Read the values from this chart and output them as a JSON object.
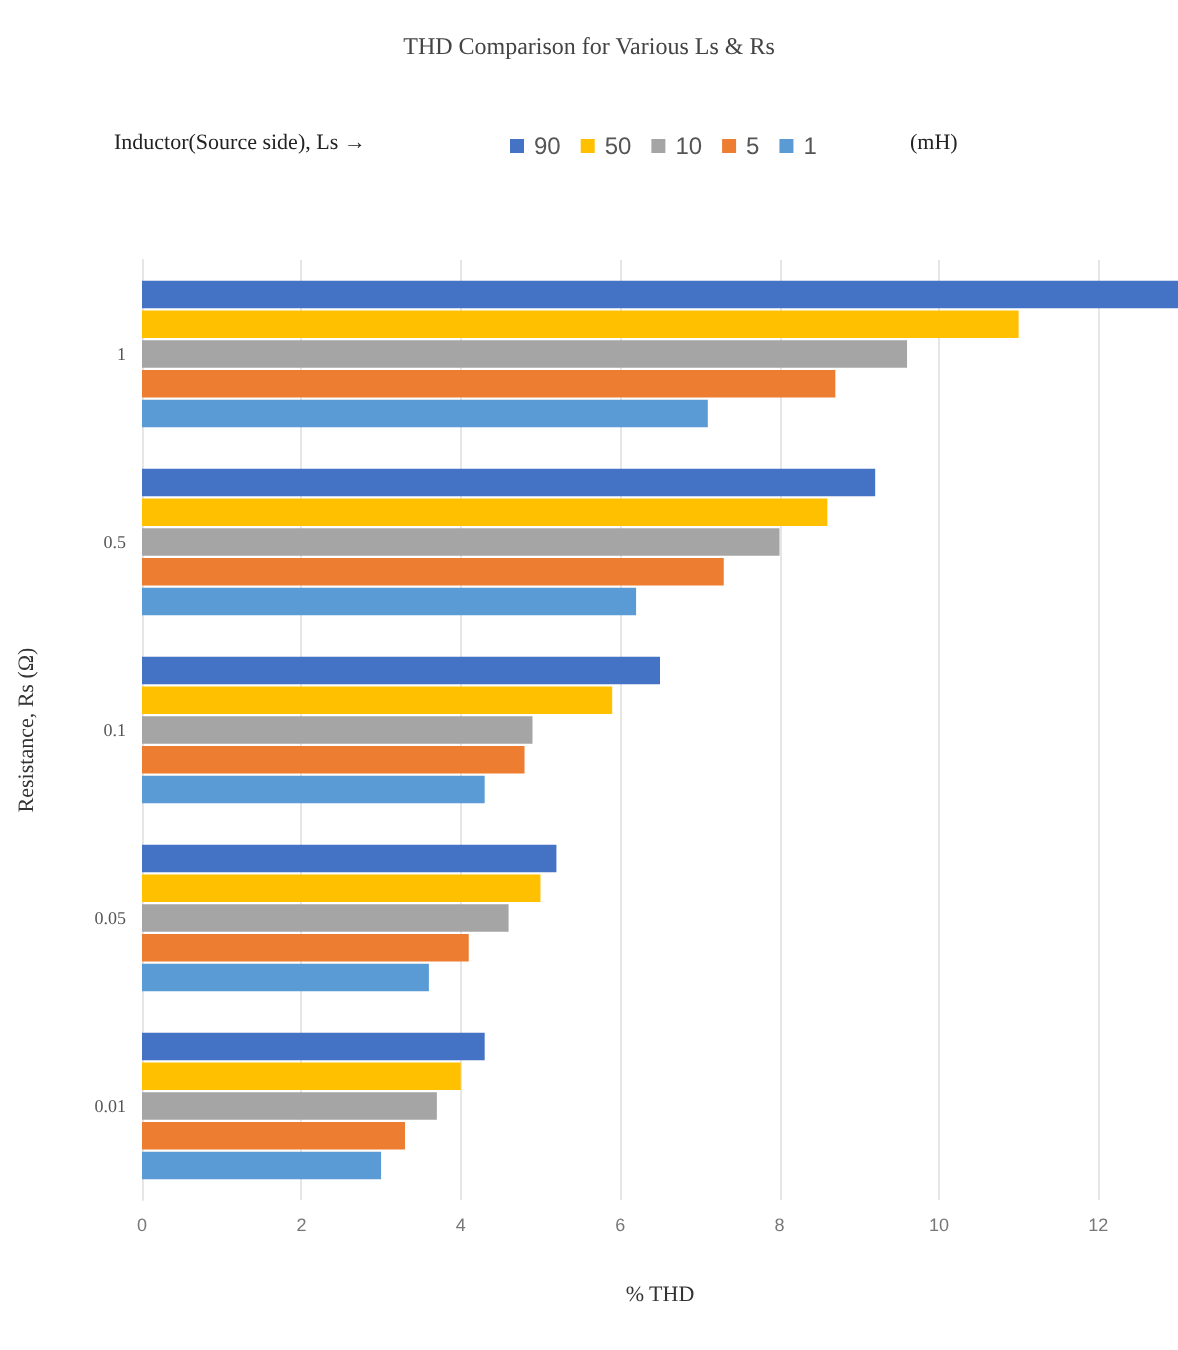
{
  "chart_data": {
    "type": "bar",
    "orientation": "horizontal",
    "title": "THD Comparison for Various Ls & Rs",
    "xlabel": "% THD",
    "ylabel": "Resistance, Rs (Ω)",
    "legend_title": "Inductor(Source side), Ls →",
    "annotations": [
      "(mH)"
    ],
    "categories": [
      "1",
      "0.5",
      "0.1",
      "0.05",
      "0.01"
    ],
    "series": [
      {
        "name": "90",
        "color": "#4472c4",
        "values": [
          13.0,
          9.2,
          6.5,
          5.2,
          4.3
        ]
      },
      {
        "name": "50",
        "color": "#ffc000",
        "values": [
          11.0,
          8.6,
          5.9,
          5.0,
          4.0
        ]
      },
      {
        "name": "10",
        "color": "#a5a5a5",
        "values": [
          9.6,
          8.0,
          4.9,
          4.6,
          3.7
        ]
      },
      {
        "name": "5",
        "color": "#ed7d31",
        "values": [
          8.7,
          7.3,
          4.8,
          4.1,
          3.3
        ]
      },
      {
        "name": "1",
        "color": "#5b9bd5",
        "values": [
          7.1,
          6.2,
          4.3,
          3.6,
          3.0
        ]
      }
    ],
    "xlim": [
      0,
      13
    ],
    "xticks": [
      0,
      2,
      4,
      6,
      8,
      10,
      12
    ],
    "grid": "x",
    "legend": "top"
  }
}
